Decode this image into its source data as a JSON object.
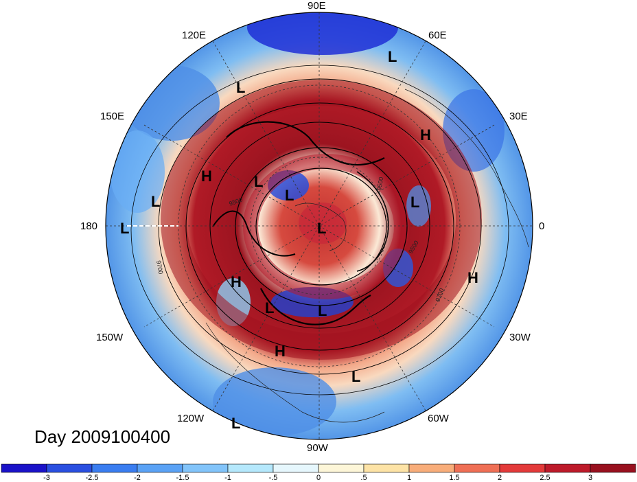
{
  "title": "Day 2009100400",
  "longitude_labels": {
    "top": "90E",
    "upper_left": "120E",
    "upper_right": "60E",
    "mid_left": "150E",
    "mid_right": "30E",
    "left": "180",
    "right": "0",
    "lower_left": "150W",
    "lower_right": "30W",
    "bottom_left": "120W",
    "bottom_right": "60W",
    "bottom": "90W"
  },
  "pressure_centers": {
    "high": "H",
    "low": "L"
  },
  "contour_labels": {
    "a": "9500",
    "b": "9700",
    "c": "9500",
    "d": "9700",
    "e": "9500"
  },
  "colorbar": {
    "ticks": [
      "-3",
      "-2.5",
      "-2",
      "-1.5",
      "-1",
      "-.5",
      "0",
      ".5",
      "1",
      "1.5",
      "2",
      "2.5",
      "3"
    ],
    "colors": [
      "#1a12c8",
      "#2a4fe0",
      "#3a7df0",
      "#5aa2f5",
      "#82c4fa",
      "#b5e8fc",
      "#e6f7fd",
      "#fdf6d8",
      "#fde3a6",
      "#f8ad7a",
      "#ef6f55",
      "#e33a3a",
      "#bd1a2a",
      "#98101e"
    ]
  }
}
